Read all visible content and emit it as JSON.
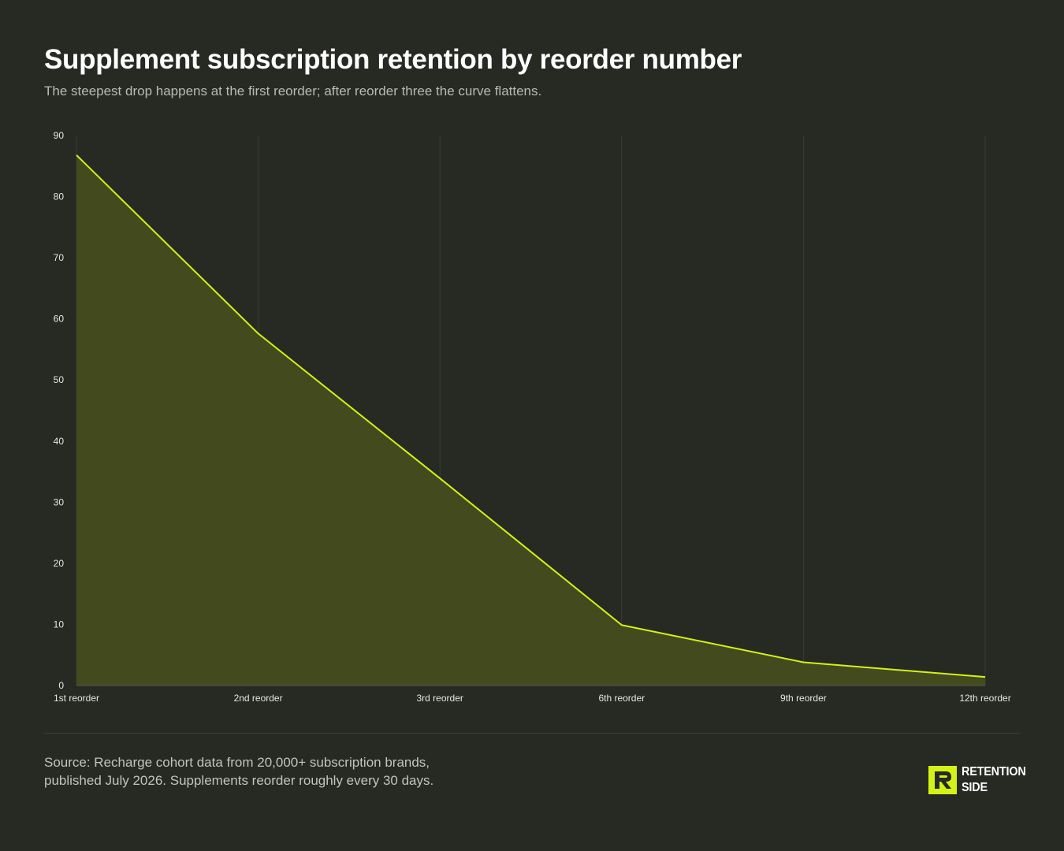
{
  "header": {
    "title": "Supplement subscription retention by reorder number",
    "subtitle": "The steepest drop happens at the first reorder; after reorder three the curve flattens."
  },
  "footer": {
    "source": "Source: Recharge cohort data from 20,000+ subscription brands, published July 2026. Supplements reorder roughly every 30 days.",
    "logo_line1": "RETENTION",
    "logo_line2": "SIDE"
  },
  "colors": {
    "background": "#272923",
    "accent": "#d4f215",
    "area_fill": "#434b1e",
    "grid": "#3a3d35",
    "tick_text": "#e6e7e2"
  },
  "chart_data": {
    "type": "area",
    "categories": [
      "1st reorder",
      "2nd reorder",
      "3rd reorder",
      "6th reorder",
      "9th reorder",
      "12th reorder"
    ],
    "values": [
      86.8,
      57.6,
      33.9,
      9.9,
      3.8,
      1.4
    ],
    "ylim": [
      0,
      90
    ],
    "yticks": [
      0,
      10,
      20,
      30,
      40,
      50,
      60,
      70,
      80,
      90
    ],
    "grid": "vertical",
    "legend": "none"
  }
}
